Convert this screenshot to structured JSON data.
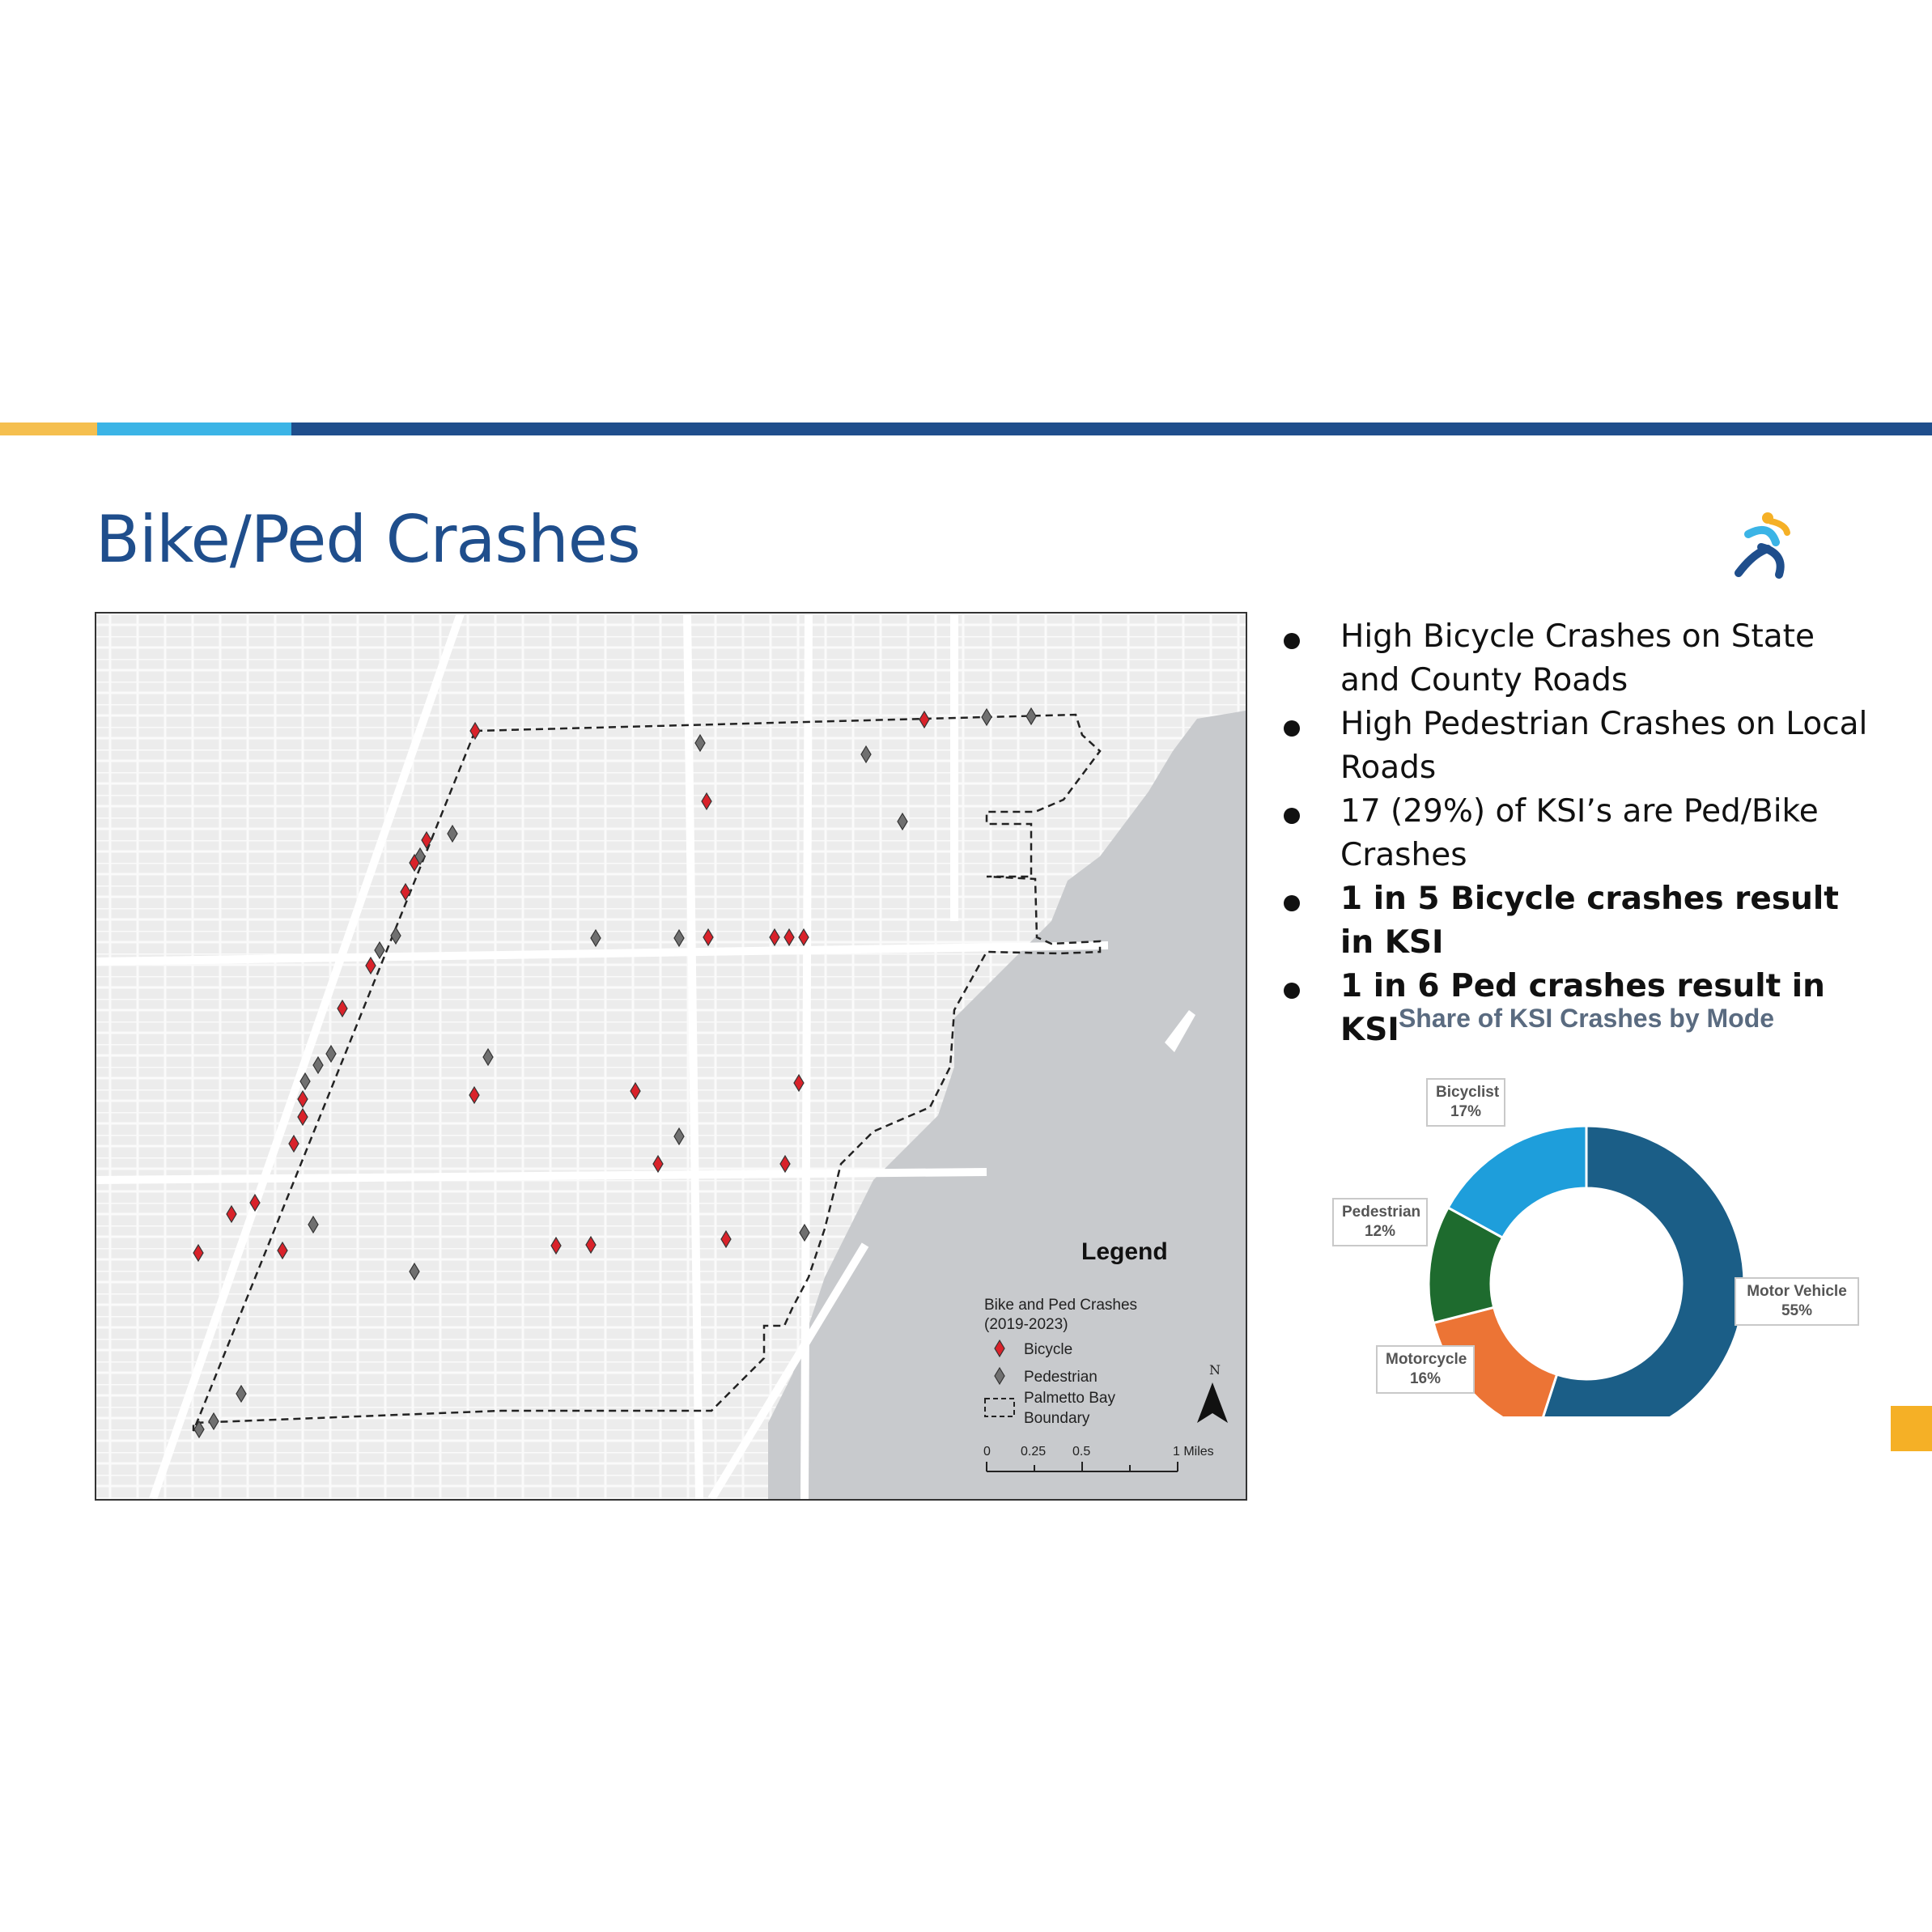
{
  "colors": {
    "stripe_yellow": "#f5bf4f",
    "stripe_light_blue": "#3bb4e6",
    "stripe_navy": "#1f4e8c",
    "title": "#1f4e8c",
    "bicycle_marker": "#d9222a",
    "pedestrian_marker": "#707070",
    "water": "#c8cacd",
    "tab_orange": "#f5b026"
  },
  "slide": {
    "title": "Bike/Ped Crashes"
  },
  "map": {
    "legend": {
      "title": "Legend",
      "subtitle_line1": "Bike and Ped Crashes",
      "subtitle_line2": "(2019-2023)",
      "bicycle_label": "Bicycle",
      "pedestrian_label": "Pedestrian",
      "boundary_label_line1": "Palmetto Bay",
      "boundary_label_line2": "Boundary",
      "north_label": "N",
      "scale_labels": [
        "0",
        "0.25",
        "0.5",
        "1 Miles"
      ]
    }
  },
  "bullets": [
    {
      "text": "High Bicycle Crashes on State and County Roads",
      "bold": false
    },
    {
      "text": "High Pedestrian Crashes on Local Roads",
      "bold": false
    },
    {
      "text": "17 (29%) of KSI’s are Ped/Bike Crashes",
      "bold": false
    },
    {
      "text": "1 in 5 Bicycle crashes result in KSI",
      "bold": true
    },
    {
      "text": "1 in 6 Ped crashes result in KSI",
      "bold": true
    }
  ],
  "chart_data": {
    "type": "pie",
    "title": "Share of KSI Crashes by Mode",
    "donut": true,
    "categories": [
      "Motor Vehicle",
      "Motorcycle",
      "Pedestrian",
      "Bicyclist"
    ],
    "values": [
      55,
      16,
      12,
      17
    ],
    "value_labels": [
      "55%",
      "16%",
      "12%",
      "17%"
    ],
    "colors": [
      "#1b5e87",
      "#ec7435",
      "#1e6b2e",
      "#1e9edb"
    ]
  }
}
